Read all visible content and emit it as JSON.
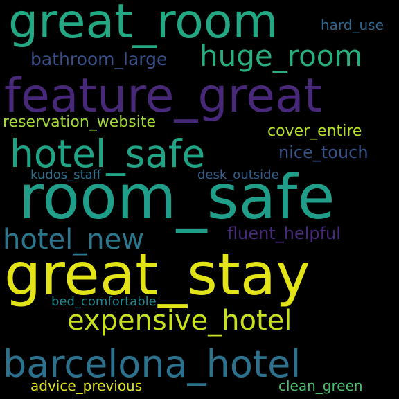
{
  "words": [
    {
      "text": "great_room",
      "color": "#23a883"
    },
    {
      "text": "hard_use",
      "color": "#31668e"
    },
    {
      "text": "huge_room",
      "color": "#29af7f"
    },
    {
      "text": "bathroom_large",
      "color": "#3b518b"
    },
    {
      "text": "feature_great",
      "color": "#482878"
    },
    {
      "text": "reservation_website",
      "color": "#a2da37"
    },
    {
      "text": "cover_entire",
      "color": "#b5de2b"
    },
    {
      "text": "hotel_safe",
      "color": "#20a486"
    },
    {
      "text": "nice_touch",
      "color": "#3a548c"
    },
    {
      "text": "kudos_staff",
      "color": "#2d718e"
    },
    {
      "text": "desk_outside",
      "color": "#355f8d"
    },
    {
      "text": "room_safe",
      "color": "#1f9e89"
    },
    {
      "text": "hotel_new",
      "color": "#2a778e"
    },
    {
      "text": "fluent_helpful",
      "color": "#472a7a"
    },
    {
      "text": "great_stay",
      "color": "#e2e418"
    },
    {
      "text": "bed_comfortable",
      "color": "#24868e"
    },
    {
      "text": "expensive_hotel",
      "color": "#c8e020"
    },
    {
      "text": "barcelona_hotel",
      "color": "#2c728e"
    },
    {
      "text": "advice_previous",
      "color": "#dde318"
    },
    {
      "text": "clean_green",
      "color": "#4ac16d"
    }
  ]
}
